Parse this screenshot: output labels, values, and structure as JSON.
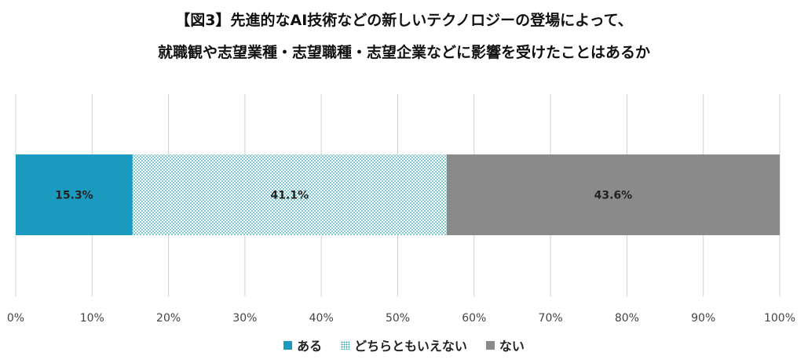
{
  "chart_data": {
    "type": "bar",
    "orientation": "horizontal",
    "stacked": true,
    "title": "【図3】先進的なAI技術などの新しいテクノロジーの登場によって、",
    "subtitle": "就職観や志望業種・志望職種・志望企業などに影響を受けたことはあるか",
    "xlim": [
      0,
      100
    ],
    "x_ticks": [
      "0%",
      "10%",
      "20%",
      "30%",
      "40%",
      "50%",
      "60%",
      "70%",
      "80%",
      "90%",
      "100%"
    ],
    "grid": true,
    "legend_position": "bottom",
    "series": [
      {
        "name": "ある",
        "value": 15.3,
        "label": "15.3%",
        "color": "#1b9ac0",
        "pattern": "solid"
      },
      {
        "name": "どちらともいえない",
        "value": 41.1,
        "label": "41.1%",
        "color": "#2aa3b8",
        "pattern": "dots"
      },
      {
        "name": "ない",
        "value": 43.6,
        "label": "43.6%",
        "color": "#8a8a8a",
        "pattern": "solid"
      }
    ]
  }
}
